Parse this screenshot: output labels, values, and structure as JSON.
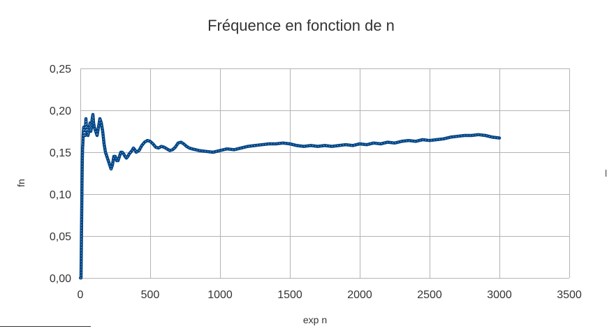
{
  "chart_data": {
    "type": "scatter",
    "title": "Fréquence en fonction de n",
    "xlabel": "exp n",
    "ylabel": "fn",
    "xlim": [
      0,
      3500
    ],
    "ylim": [
      0,
      0.25
    ],
    "x_ticks": [
      "0",
      "500",
      "1000",
      "1500",
      "2000",
      "2500",
      "3000",
      "3500"
    ],
    "y_ticks": [
      "0,00",
      "0,05",
      "0,10",
      "0,15",
      "0,20",
      "0,25"
    ],
    "grid": true,
    "legend": "none",
    "series": [
      {
        "color": "#004586",
        "x": [
          1,
          5,
          8,
          10,
          12,
          14,
          16,
          18,
          20,
          22,
          25,
          28,
          30,
          35,
          40,
          45,
          50,
          55,
          60,
          65,
          70,
          75,
          80,
          85,
          90,
          95,
          100,
          110,
          120,
          130,
          140,
          150,
          160,
          170,
          180,
          190,
          200,
          210,
          220,
          230,
          240,
          250,
          260,
          270,
          280,
          290,
          300,
          310,
          320,
          330,
          340,
          350,
          360,
          370,
          380,
          390,
          400,
          420,
          440,
          460,
          480,
          500,
          520,
          540,
          560,
          580,
          600,
          620,
          640,
          660,
          680,
          700,
          720,
          740,
          760,
          780,
          800,
          850,
          900,
          950,
          1000,
          1050,
          1100,
          1150,
          1200,
          1250,
          1300,
          1350,
          1400,
          1450,
          1500,
          1550,
          1600,
          1650,
          1700,
          1750,
          1800,
          1850,
          1900,
          1950,
          2000,
          2050,
          2100,
          2150,
          2200,
          2250,
          2300,
          2350,
          2400,
          2450,
          2500,
          2550,
          2600,
          2650,
          2700,
          2750,
          2800,
          2850,
          2900,
          2950,
          3000
        ],
        "y": [
          0.0,
          0.0,
          0.05,
          0.08,
          0.115,
          0.14,
          0.155,
          0.16,
          0.17,
          0.175,
          0.18,
          0.17,
          0.175,
          0.17,
          0.19,
          0.175,
          0.18,
          0.17,
          0.175,
          0.18,
          0.185,
          0.175,
          0.18,
          0.19,
          0.195,
          0.185,
          0.18,
          0.175,
          0.17,
          0.18,
          0.19,
          0.185,
          0.175,
          0.16,
          0.15,
          0.145,
          0.14,
          0.135,
          0.13,
          0.135,
          0.145,
          0.145,
          0.14,
          0.14,
          0.145,
          0.15,
          0.15,
          0.148,
          0.145,
          0.143,
          0.145,
          0.148,
          0.15,
          0.152,
          0.155,
          0.153,
          0.15,
          0.152,
          0.158,
          0.162,
          0.164,
          0.163,
          0.16,
          0.156,
          0.155,
          0.157,
          0.156,
          0.154,
          0.152,
          0.153,
          0.156,
          0.161,
          0.162,
          0.16,
          0.157,
          0.155,
          0.154,
          0.152,
          0.151,
          0.15,
          0.152,
          0.154,
          0.153,
          0.155,
          0.157,
          0.158,
          0.159,
          0.16,
          0.16,
          0.161,
          0.16,
          0.158,
          0.157,
          0.158,
          0.157,
          0.158,
          0.157,
          0.158,
          0.159,
          0.158,
          0.16,
          0.159,
          0.161,
          0.16,
          0.162,
          0.161,
          0.163,
          0.164,
          0.163,
          0.165,
          0.164,
          0.165,
          0.166,
          0.168,
          0.169,
          0.17,
          0.17,
          0.171,
          0.17,
          0.168,
          0.167
        ]
      }
    ]
  }
}
